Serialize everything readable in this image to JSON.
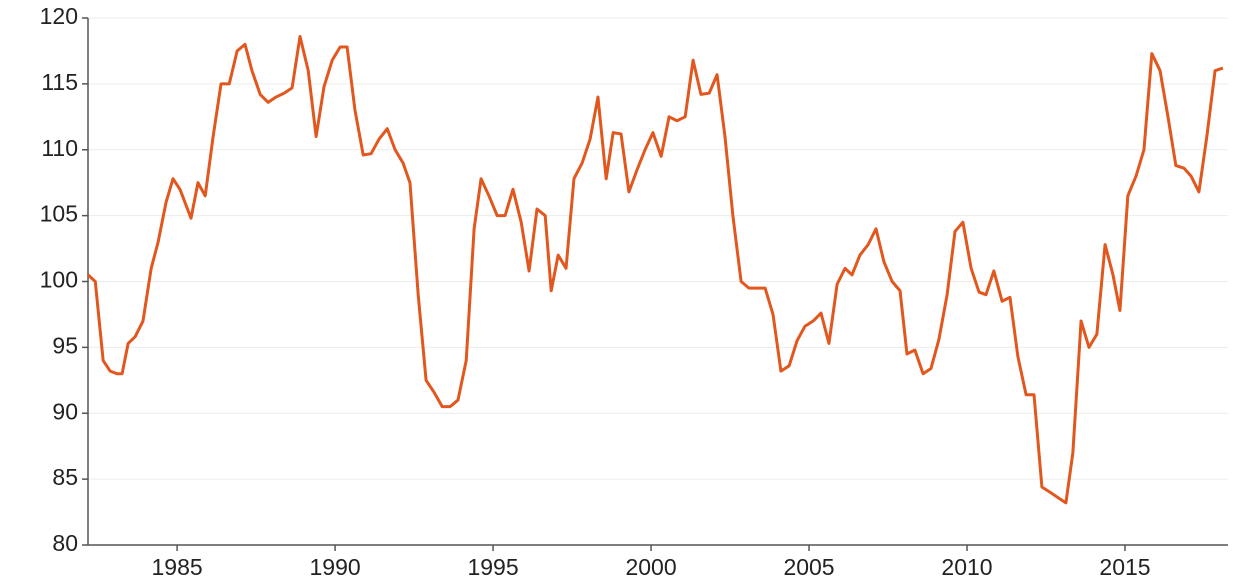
{
  "chart_data": {
    "type": "line",
    "x": [
      1982.18,
      1982.41,
      1982.66,
      1982.88,
      1983.1,
      1983.26,
      1983.45,
      1983.67,
      1983.92,
      1984.18,
      1984.4,
      1984.65,
      1984.87,
      1985.09,
      1985.25,
      1985.44,
      1985.66,
      1985.89,
      1986.14,
      1986.39,
      1986.65,
      1986.9,
      1987.15,
      1987.37,
      1987.63,
      1987.88,
      1988.13,
      1988.39,
      1988.64,
      1988.89,
      1989.15,
      1989.4,
      1989.65,
      1989.91,
      1990.16,
      1990.38,
      1990.63,
      1990.89,
      1991.14,
      1991.39,
      1991.65,
      1991.9,
      1992.15,
      1992.37,
      1992.63,
      1992.88,
      1993.13,
      1993.39,
      1993.64,
      1993.89,
      1994.15,
      1994.4,
      1994.62,
      1994.87,
      1995.13,
      1995.38,
      1995.63,
      1995.89,
      1996.14,
      1996.39,
      1996.65,
      1996.84,
      1997.06,
      1997.31,
      1997.56,
      1997.82,
      1998.07,
      1998.32,
      1998.58,
      1998.8,
      1999.05,
      1999.3,
      1999.56,
      1999.81,
      2000.06,
      2000.32,
      2000.57,
      2000.82,
      2001.08,
      2001.33,
      2001.58,
      2001.84,
      2002.09,
      2002.34,
      2002.59,
      2002.85,
      2003.1,
      2003.35,
      2003.61,
      2003.86,
      2004.11,
      2004.37,
      2004.62,
      2004.87,
      2005.13,
      2005.38,
      2005.63,
      2005.89,
      2006.14,
      2006.36,
      2006.61,
      2006.87,
      2007.12,
      2007.37,
      2007.63,
      2007.88,
      2008.1,
      2008.35,
      2008.61,
      2008.86,
      2009.11,
      2009.37,
      2009.62,
      2009.87,
      2010.13,
      2010.38,
      2010.6,
      2010.85,
      2011.11,
      2011.36,
      2011.61,
      2011.87,
      2012.12,
      2012.37,
      2012.63,
      2012.88,
      2013.13,
      2013.35,
      2013.61,
      2013.86,
      2014.11,
      2014.37,
      2014.62,
      2014.84,
      2015.09,
      2015.35,
      2015.6,
      2015.85,
      2016.11,
      2016.36,
      2016.61,
      2016.87,
      2017.09,
      2017.34,
      2017.59,
      2017.85,
      2018.1
    ],
    "values": [
      100.5,
      100,
      94,
      93.2,
      93,
      93,
      95.3,
      95.8,
      97,
      101,
      103,
      106,
      107.8,
      107,
      106,
      104.8,
      107.5,
      106.5,
      111,
      115,
      115,
      117.5,
      118,
      116,
      114.2,
      113.6,
      114,
      114.3,
      114.7,
      118.6,
      116,
      111,
      114.8,
      116.8,
      117.8,
      117.8,
      113,
      109.6,
      109.7,
      110.8,
      111.6,
      110,
      109,
      107.5,
      99,
      92.5,
      91.6,
      90.5,
      90.5,
      91,
      94,
      104,
      107.8,
      106.5,
      105,
      105,
      107,
      104.5,
      100.8,
      105.5,
      105,
      99.3,
      102,
      101,
      107.8,
      109,
      110.8,
      114,
      107.8,
      111.3,
      111.2,
      106.8,
      108.5,
      110,
      111.3,
      109.5,
      112.5,
      112.2,
      112.5,
      116.8,
      114.2,
      114.3,
      115.7,
      111,
      105,
      100,
      99.5,
      99.5,
      99.5,
      97.5,
      93.2,
      93.6,
      95.5,
      96.6,
      97,
      97.6,
      95.3,
      99.8,
      101,
      100.5,
      102,
      102.8,
      104,
      101.5,
      100,
      99.3,
      94.5,
      94.8,
      93,
      93.4,
      95.6,
      99,
      103.8,
      104.5,
      101,
      99.2,
      99,
      100.8,
      98.5,
      98.8,
      94.3,
      91.4,
      91.4,
      84.4,
      84,
      83.6,
      83.2,
      87,
      97,
      95,
      96,
      102.8,
      100.5,
      97.8,
      106.5,
      108,
      110,
      117.3,
      116,
      112.5,
      108.8,
      108.6,
      108,
      106.8,
      111,
      116,
      116.2
    ],
    "color": "#e2571e",
    "xlim": [
      1982.18,
      2018.26
    ],
    "xticks": [
      1985,
      1990,
      1995,
      2000,
      2005,
      2010,
      2015
    ],
    "ylim": [
      80,
      120
    ],
    "yticks": [
      80,
      85,
      90,
      95,
      100,
      105,
      110,
      115,
      120
    ],
    "grid": true
  }
}
